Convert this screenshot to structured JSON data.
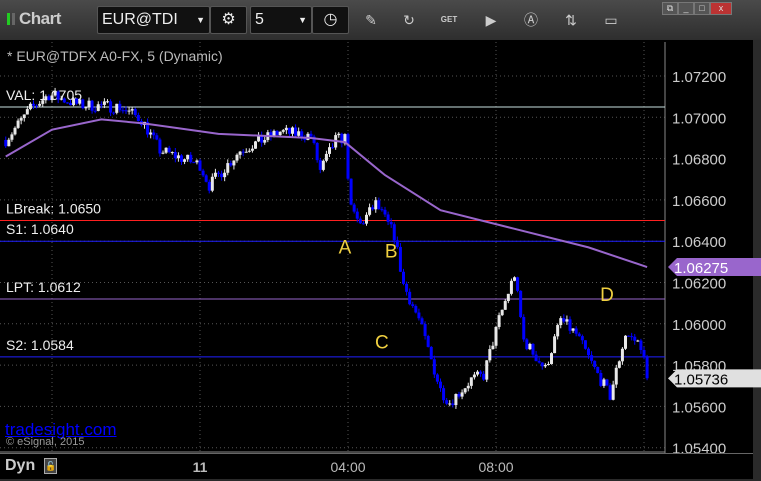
{
  "window": {
    "app_title": "Chart",
    "symbol": "EUR@TDI",
    "interval": "5",
    "subtitle": "* EUR@TDFX A0-FX, 5 (Dynamic)",
    "toolbar_icons": [
      "settings-gear-icon",
      "clock-icon",
      "pencil-icon",
      "refresh-chart-icon",
      "get-icon",
      "play-icon",
      "alert-a-icon",
      "swap-icon",
      "comment-icon"
    ],
    "window_buttons": [
      "restore-icon",
      "minimize-icon",
      "maximize-icon",
      "close-icon"
    ]
  },
  "bottom": {
    "mode": "Dyn"
  },
  "watermark": "tradesight.com",
  "copyright": "© eSignal, 2015",
  "chart_data": {
    "type": "candlestick",
    "bar_interval_min": 5,
    "ylim": [
      1.0535,
      1.0735
    ],
    "y_ticks": [
      "1.07200",
      "1.07000",
      "1.06800",
      "1.06600",
      "1.06400",
      "1.06200",
      "1.06000",
      "1.05800",
      "1.05600",
      "1.05400"
    ],
    "x_ticks": [
      {
        "label": "11",
        "time": "11 00:00",
        "bold": true
      },
      {
        "label": "04:00",
        "time": "11 04:00"
      },
      {
        "label": "08:00",
        "time": "11 08:00"
      }
    ],
    "grid": true,
    "up_color": "#e8e8e8",
    "down_color": "#0000ff",
    "price_path": [
      [
        "10 18:45",
        1.0689
      ],
      [
        "10 19:25",
        1.0704
      ],
      [
        "10 19:55",
        1.0711
      ],
      [
        "10 20:45",
        1.0706
      ],
      [
        "10 21:50",
        1.0705
      ],
      [
        "10 22:25",
        1.0699
      ],
      [
        "10 22:55",
        1.0684
      ],
      [
        "11 00:00",
        1.0677
      ],
      [
        "11 00:15",
        1.0667
      ],
      [
        "11 01:05",
        1.0684
      ],
      [
        "11 02:10",
        1.0693
      ],
      [
        "11 03:00",
        1.0691
      ],
      [
        "11 03:15",
        1.0674
      ],
      [
        "11 03:40",
        1.0689
      ],
      [
        "11 03:55",
        1.069
      ],
      [
        "11 04:05",
        1.0655
      ],
      [
        "11 04:20",
        1.0648
      ],
      [
        "11 04:45",
        1.0658
      ],
      [
        "11 05:15",
        1.0643
      ],
      [
        "11 05:30",
        1.0619
      ],
      [
        "11 05:55",
        1.0602
      ],
      [
        "11 06:30",
        1.0568
      ],
      [
        "11 06:45",
        1.0562
      ],
      [
        "11 07:20",
        1.0573
      ],
      [
        "11 07:40",
        1.0575
      ],
      [
        "11 08:05",
        1.0602
      ],
      [
        "11 08:30",
        1.0624
      ],
      [
        "11 08:45",
        1.0592
      ],
      [
        "11 09:20",
        1.0578
      ],
      [
        "11 09:45",
        1.0602
      ],
      [
        "11 10:10",
        1.0595
      ],
      [
        "11 10:40",
        1.0578
      ],
      [
        "11 11:05",
        1.0565
      ],
      [
        "11 11:30",
        1.0595
      ],
      [
        "11 11:55",
        1.059
      ],
      [
        "11 12:05",
        1.05736
      ]
    ],
    "moving_average": {
      "color": "#9966cc",
      "points": [
        [
          "10 18:45",
          1.0681
        ],
        [
          "10 20:00",
          1.0694
        ],
        [
          "10 21:20",
          1.0699
        ],
        [
          "10 22:30",
          1.0697
        ],
        [
          "11 00:30",
          1.0692
        ],
        [
          "11 03:00",
          1.069
        ],
        [
          "11 03:55",
          1.0688
        ],
        [
          "11 05:00",
          1.0672
        ],
        [
          "11 06:30",
          1.0655
        ],
        [
          "11 08:30",
          1.0646
        ],
        [
          "11 10:30",
          1.0637
        ],
        [
          "11 12:05",
          1.06275
        ]
      ]
    },
    "last_price": "1.05736",
    "ma_value": "1.06275",
    "levels": [
      {
        "label": "VAL: 1.0705",
        "price": 1.0705,
        "color": "#c8e0e0"
      },
      {
        "label": "LBreak: 1.0650",
        "price": 1.065,
        "color": "#ff2020"
      },
      {
        "label": "S1: 1.0640",
        "price": 1.064,
        "color": "#2020ff"
      },
      {
        "label": "LPT: 1.0612",
        "price": 1.0612,
        "color": "#9966cc"
      },
      {
        "label": "S2: 1.0584",
        "price": 1.0584,
        "color": "#2020ff"
      }
    ],
    "annotations": [
      {
        "text": "A",
        "time": "11 03:55",
        "price": 1.0634
      },
      {
        "text": "B",
        "time": "11 05:10",
        "price": 1.0632
      },
      {
        "text": "C",
        "time": "11 04:55",
        "price": 1.0588
      },
      {
        "text": "D",
        "time": "11 11:00",
        "price": 1.0611
      }
    ],
    "annotation_color": "#f0d040"
  }
}
